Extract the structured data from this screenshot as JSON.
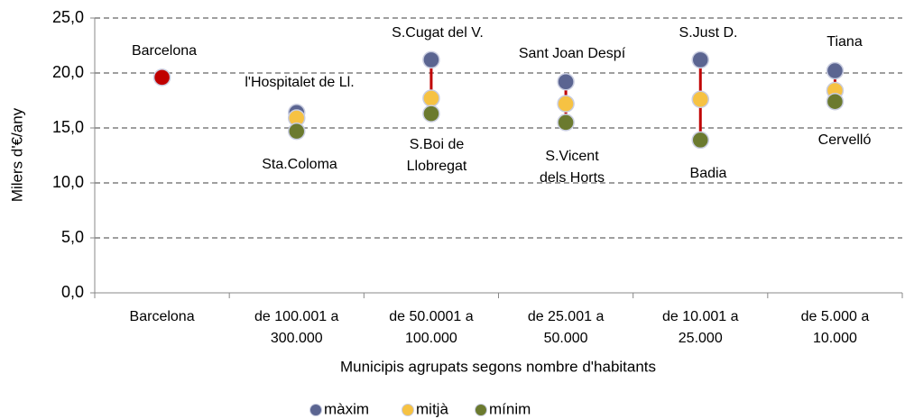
{
  "chart_data": {
    "type": "range-dot",
    "ylabel": "Milers d'€/any",
    "xlabel": "Municipis agrupats segons nombre d'habitants",
    "categories": [
      [
        "Barcelona"
      ],
      [
        "de 100.001 a",
        "300.000"
      ],
      [
        "de 50.0001 a",
        "100.000"
      ],
      [
        "de 25.001 a",
        "50.000"
      ],
      [
        "de 10.001 a",
        "25.000"
      ],
      [
        "de 5.000 a",
        "10.000"
      ]
    ],
    "series": [
      {
        "name": "màxim",
        "color": "#5b6591",
        "values": [
          19.6,
          16.4,
          21.2,
          19.2,
          21.2,
          20.2
        ]
      },
      {
        "name": "mitjà",
        "color": "#f6c243",
        "values": [
          null,
          15.9,
          17.7,
          17.2,
          17.6,
          18.4
        ]
      },
      {
        "name": "mínim",
        "color": "#6b7a2f",
        "values": [
          null,
          14.7,
          16.3,
          15.5,
          13.9,
          17.4
        ]
      }
    ],
    "highlight": {
      "series": 0,
      "index": 0,
      "color": "#c00000"
    },
    "range_color": "#c00000",
    "annotations": [
      [
        "Barcelona"
      ],
      [
        "l'Hospitalet de Ll."
      ],
      [
        "Sta.Coloma"
      ],
      [
        "S.Cugat del V."
      ],
      [
        "S.Boi de",
        "Llobregat"
      ],
      [
        "Sant Joan Despí"
      ],
      [
        "S.Vicent",
        "dels Horts"
      ],
      [
        "S.Just D."
      ],
      [
        "Badia"
      ],
      [
        "Tiana"
      ],
      [
        "Cervelló"
      ]
    ],
    "ylim": [
      0,
      25
    ],
    "yticks": [
      {
        "value": 0,
        "label": "0,0"
      },
      {
        "value": 5,
        "label": "5,0"
      },
      {
        "value": 10,
        "label": "10,0"
      },
      {
        "value": 15,
        "label": "15,0"
      },
      {
        "value": 20,
        "label": "20,0"
      },
      {
        "value": 25,
        "label": "25,0"
      }
    ],
    "grid": true,
    "legend": "bottom"
  }
}
